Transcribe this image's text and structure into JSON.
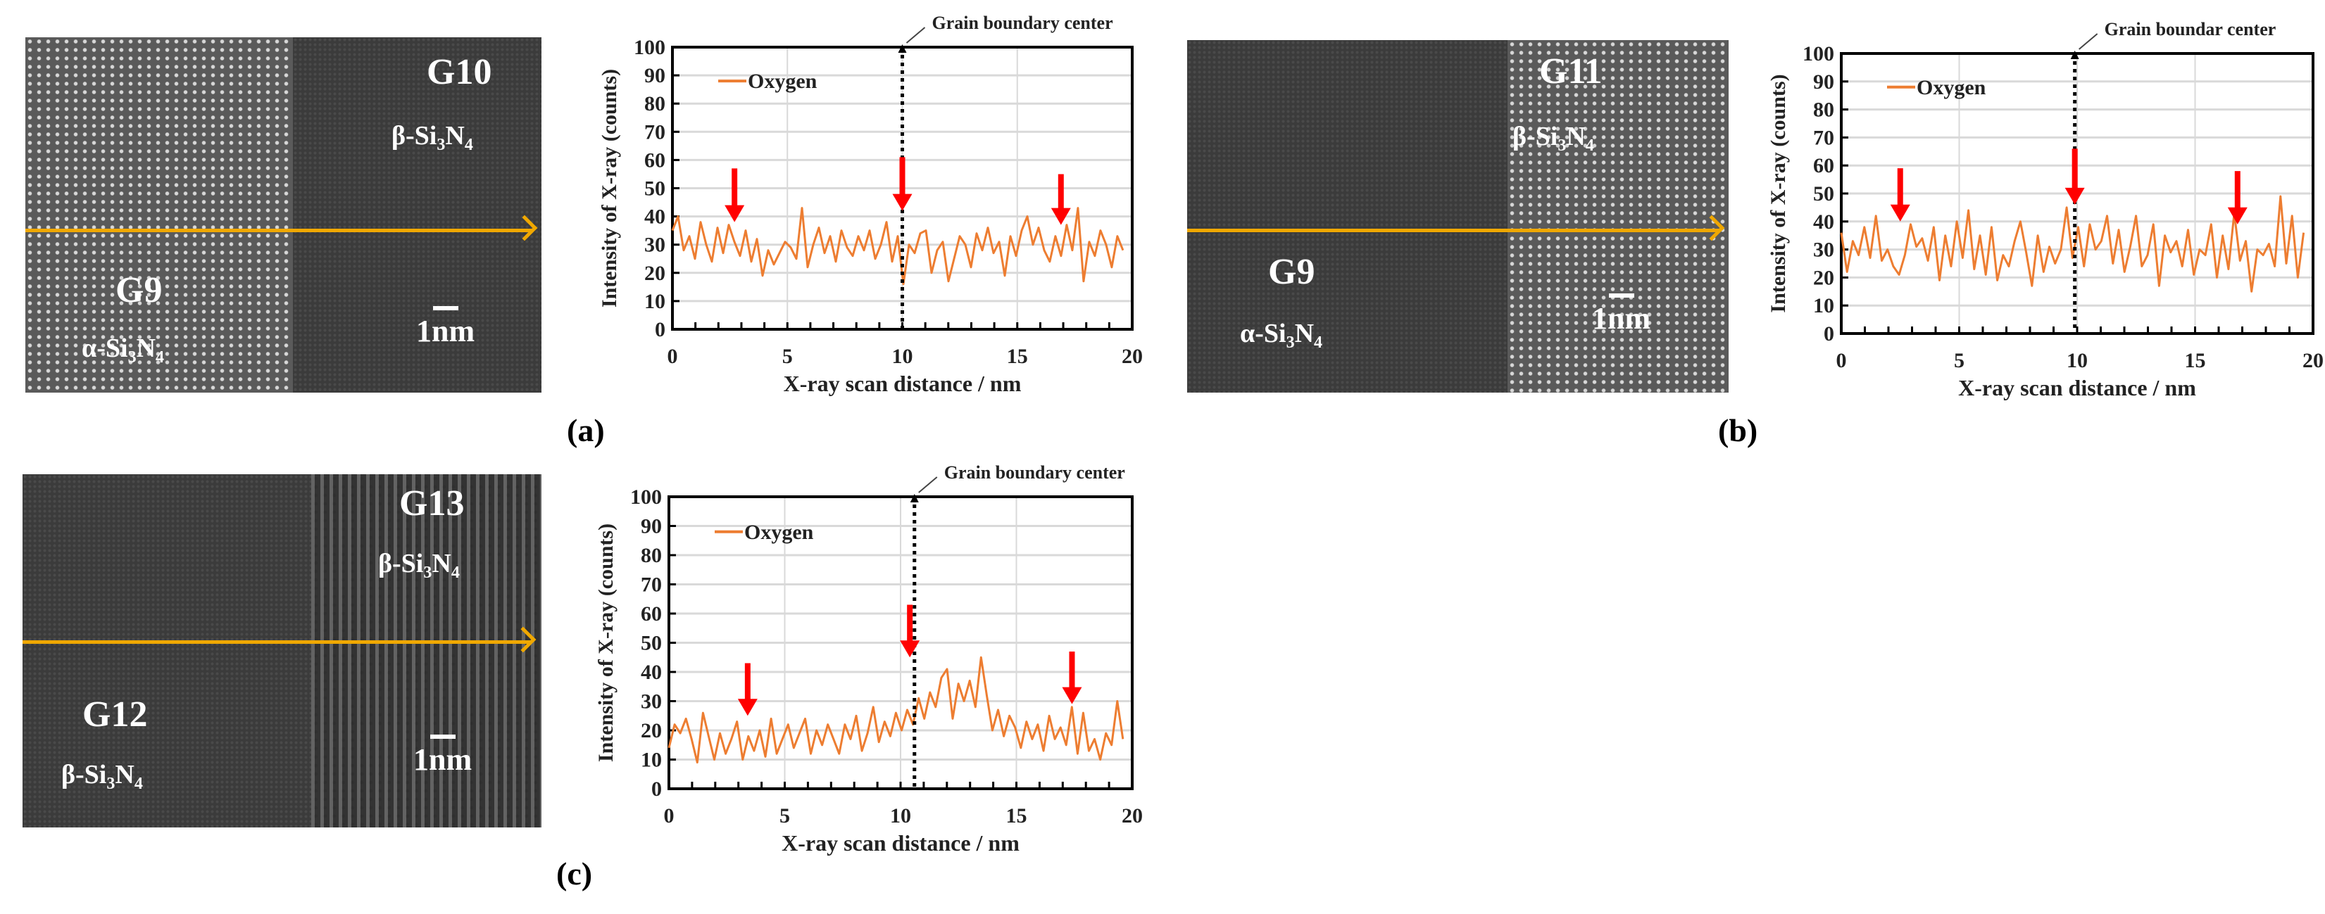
{
  "panels": [
    {
      "label": "(a)",
      "image": {
        "grain_top": "G10",
        "phase_top": {
          "prefix": "β-Si",
          "sub1": "3",
          "mid": "N",
          "sub2": "4"
        },
        "grain_bottom": "G9",
        "phase_bottom": {
          "prefix": "α-Si",
          "sub1": "3",
          "mid": "N",
          "sub2": "4"
        },
        "scale_bar": "1nm"
      }
    },
    {
      "label": "(b)",
      "image": {
        "grain_top": "G11",
        "phase_top": {
          "prefix": "β-Si",
          "sub1": "3",
          "mid": "N",
          "sub2": "4"
        },
        "grain_bottom": "G9",
        "phase_bottom": {
          "prefix": "α-Si",
          "sub1": "3",
          "mid": "N",
          "sub2": "4"
        },
        "scale_bar": "1nm"
      }
    },
    {
      "label": "(c)",
      "image": {
        "grain_top": "G13",
        "phase_top": {
          "prefix": "β-Si",
          "sub1": "3",
          "mid": "N",
          "sub2": "4"
        },
        "grain_bottom": "G12",
        "phase_bottom": {
          "prefix": "β-Si",
          "sub1": "3",
          "mid": "N",
          "sub2": "4"
        },
        "scale_bar": "1nm"
      }
    }
  ],
  "colors": {
    "series": "#ed7d31",
    "arrow": "#ff0000",
    "scan_line": "#f0a800"
  },
  "chart_data": [
    {
      "type": "line",
      "xlabel": "X-ray scan distance / nm",
      "ylabel": "Intensity of X-ray (counts)",
      "xlim": [
        0,
        20
      ],
      "ylim": [
        0,
        100
      ],
      "xticks": [
        0,
        5,
        10,
        15,
        20
      ],
      "yticks": [
        0,
        10,
        20,
        30,
        40,
        50,
        60,
        70,
        80,
        90,
        100
      ],
      "grid": true,
      "legend_position": "top-left",
      "annotation": "Grain boundary center",
      "boundary_x": 10,
      "arrows": [
        {
          "x": 2.7,
          "tip": 38,
          "tail": 57
        },
        {
          "x": 10,
          "tip": 42,
          "tail": 61
        },
        {
          "x": 16.9,
          "tip": 37,
          "tail": 55
        }
      ],
      "series": [
        {
          "name": "Oxygen",
          "x_start": 0,
          "x_step": 0.245,
          "values": [
            35,
            40,
            28,
            33,
            25,
            38,
            30,
            24,
            36,
            27,
            37,
            31,
            26,
            35,
            24,
            32,
            19,
            28,
            23,
            27,
            31,
            29,
            25,
            43,
            22,
            30,
            36,
            27,
            33,
            24,
            35,
            29,
            26,
            33,
            28,
            35,
            25,
            30,
            38,
            24,
            33,
            16,
            30,
            27,
            34,
            35,
            20,
            28,
            31,
            17,
            25,
            33,
            30,
            22,
            34,
            28,
            36,
            27,
            31,
            19,
            33,
            26,
            35,
            40,
            30,
            36,
            28,
            24,
            33,
            26,
            37,
            28,
            43,
            17,
            31,
            26,
            35,
            30,
            22,
            33,
            28
          ]
        }
      ]
    },
    {
      "type": "line",
      "xlabel": "X-ray scan distance / nm",
      "ylabel": "Intensity of X-ray  (counts)",
      "xlim": [
        0,
        20
      ],
      "ylim": [
        0,
        100
      ],
      "xticks": [
        0,
        5,
        10,
        15,
        20
      ],
      "yticks": [
        0,
        10,
        20,
        30,
        40,
        50,
        60,
        70,
        80,
        90,
        100
      ],
      "grid": true,
      "legend_position": "top-left",
      "annotation": "Grain boundar center",
      "boundary_x": 9.9,
      "arrows": [
        {
          "x": 2.5,
          "tip": 40,
          "tail": 59
        },
        {
          "x": 9.9,
          "tip": 46,
          "tail": 66
        },
        {
          "x": 16.8,
          "tip": 39,
          "tail": 58
        }
      ],
      "series": [
        {
          "name": "Oxygen",
          "x_start": 0,
          "x_step": 0.245,
          "values": [
            36,
            22,
            33,
            28,
            38,
            27,
            42,
            26,
            30,
            24,
            21,
            28,
            39,
            31,
            34,
            26,
            38,
            19,
            35,
            24,
            40,
            27,
            44,
            23,
            35,
            21,
            38,
            19,
            28,
            24,
            33,
            40,
            29,
            17,
            35,
            22,
            31,
            25,
            30,
            45,
            27,
            38,
            24,
            39,
            30,
            33,
            42,
            25,
            37,
            22,
            31,
            42,
            24,
            28,
            39,
            17,
            35,
            29,
            33,
            24,
            37,
            21,
            30,
            28,
            39,
            20,
            35,
            23,
            43,
            26,
            33,
            15,
            30,
            28,
            32,
            24,
            49,
            25,
            42,
            20,
            36
          ]
        }
      ]
    },
    {
      "type": "line",
      "xlabel": "X-ray scan distance / nm",
      "ylabel": "Intensity of X-ray   (counts)",
      "xlim": [
        0,
        20
      ],
      "ylim": [
        0,
        100
      ],
      "xticks": [
        0,
        5,
        10,
        15,
        20
      ],
      "yticks": [
        0,
        10,
        20,
        30,
        40,
        50,
        60,
        70,
        80,
        90,
        100
      ],
      "grid": true,
      "legend_position": "top-left",
      "annotation": "Grain boundary center",
      "boundary_x": 10.6,
      "arrows": [
        {
          "x": 3.4,
          "tip": 25,
          "tail": 43
        },
        {
          "x": 10.4,
          "tip": 45,
          "tail": 63
        },
        {
          "x": 17.4,
          "tip": 29,
          "tail": 47
        }
      ],
      "series": [
        {
          "name": "Oxygen",
          "x_start": 0,
          "x_step": 0.245,
          "values": [
            14,
            22,
            19,
            24,
            17,
            9,
            26,
            18,
            10,
            19,
            12,
            17,
            23,
            10,
            18,
            13,
            20,
            11,
            24,
            12,
            17,
            22,
            14,
            19,
            24,
            12,
            20,
            15,
            22,
            17,
            12,
            22,
            17,
            25,
            13,
            19,
            28,
            16,
            23,
            18,
            26,
            20,
            27,
            22,
            31,
            24,
            33,
            28,
            38,
            41,
            24,
            36,
            30,
            37,
            28,
            45,
            32,
            20,
            27,
            18,
            25,
            21,
            14,
            23,
            17,
            22,
            13,
            25,
            17,
            21,
            15,
            28,
            12,
            26,
            13,
            17,
            10,
            19,
            15,
            30,
            17
          ]
        }
      ]
    }
  ]
}
